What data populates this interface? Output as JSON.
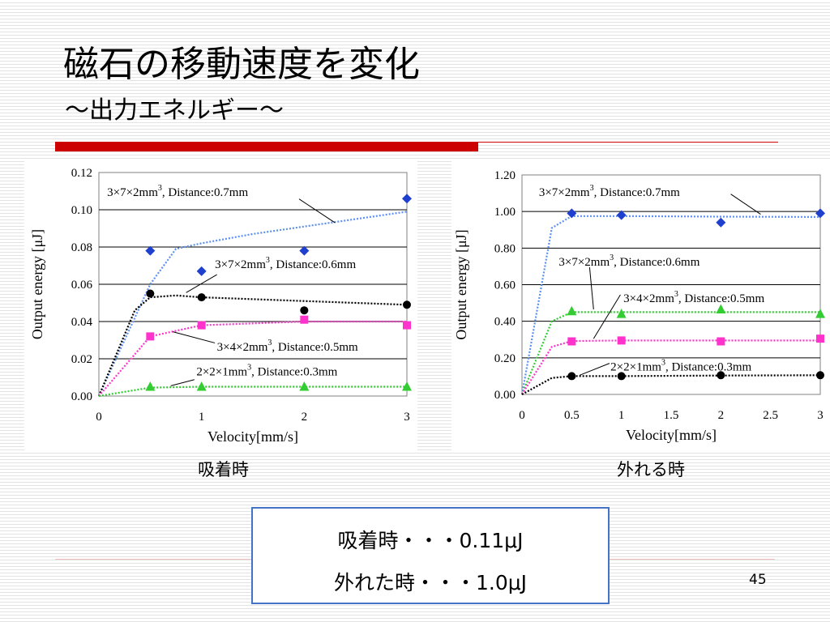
{
  "slide": {
    "title": "磁石の移動速度を変化",
    "subtitle": "～出力エネルギー～",
    "caption_left": "吸着時",
    "caption_right": "外れる時",
    "summary_line1": "吸着時・・・0.11μJ",
    "summary_line2": "外れた時・・・1.0μJ",
    "page_number": "45"
  },
  "colors": {
    "accent_red": "#cc0000",
    "box_border": "#4472c4",
    "series_blue": "#1f3fcf",
    "series_black": "#000000",
    "series_magenta": "#ff33cc",
    "series_green": "#33cc33",
    "trend_blue": "#5b8ff0"
  },
  "chart_data": [
    {
      "type": "scatter",
      "xlabel": "Velocity[mm/s]",
      "ylabel": "Output energy [μJ]",
      "xlim": [
        0,
        3
      ],
      "ylim": [
        0,
        0.12
      ],
      "xticks": [
        "0",
        "1",
        "2",
        "3"
      ],
      "xtick_values": [
        0,
        1,
        2,
        3
      ],
      "yticks": [
        "0.00",
        "0.02",
        "0.04",
        "0.06",
        "0.08",
        "0.10",
        "0.12"
      ],
      "ytick_values": [
        0,
        0.02,
        0.04,
        0.06,
        0.08,
        0.1,
        0.12
      ],
      "grid": "horizontal",
      "series": [
        {
          "name": "3×7×2mm3, Distance:0.7mm",
          "marker": "diamond",
          "color": "#1f3fcf",
          "trend_color": "#5b8ff0",
          "x": [
            0.5,
            1,
            2,
            3
          ],
          "y": [
            0.078,
            0.067,
            0.078,
            0.106
          ],
          "trend_x": [
            0,
            0.5,
            0.75,
            1,
            1.5,
            2,
            2.5,
            3
          ],
          "trend_y": [
            0,
            0.06,
            0.079,
            0.082,
            0.087,
            0.091,
            0.095,
            0.099
          ]
        },
        {
          "name": "3×7×2mm3, Distance:0.6mm",
          "marker": "circle",
          "color": "#000000",
          "trend_color": "#000000",
          "x": [
            0.5,
            1,
            2,
            3
          ],
          "y": [
            0.055,
            0.053,
            0.046,
            0.049
          ],
          "trend_x": [
            0,
            0.35,
            0.5,
            0.75,
            1,
            2,
            3
          ],
          "trend_y": [
            0,
            0.046,
            0.053,
            0.054,
            0.053,
            0.051,
            0.049
          ]
        },
        {
          "name": "3×4×2mm3, Distance:0.5mm",
          "marker": "square",
          "color": "#ff33cc",
          "trend_color": "#ff33cc",
          "x": [
            0.5,
            1,
            2,
            3
          ],
          "y": [
            0.032,
            0.038,
            0.041,
            0.038
          ],
          "trend_x": [
            0,
            0.5,
            1,
            2,
            3
          ],
          "trend_y": [
            0,
            0.032,
            0.038,
            0.04,
            0.04
          ]
        },
        {
          "name": "2×2×1mm3, Distance:0.3mm",
          "marker": "triangle",
          "color": "#33cc33",
          "trend_color": "#33cc33",
          "x": [
            0.5,
            1,
            2,
            3
          ],
          "y": [
            0.005,
            0.005,
            0.005,
            0.005
          ],
          "trend_x": [
            0,
            0.5,
            1,
            2,
            3
          ],
          "trend_y": [
            0,
            0.0045,
            0.005,
            0.005,
            0.005
          ]
        }
      ],
      "annotations": [
        {
          "text": "3×7×2mm",
          "sup": "3",
          "tail": ", Distance:0.7mm",
          "lx": 0.08,
          "ly": 0.1075,
          "line": [
            [
              1.95,
              0.1058
            ],
            [
              2.3,
              0.093
            ]
          ]
        },
        {
          "text": "3×7×2mm",
          "sup": "3",
          "tail": ", Distance:0.6mm",
          "lx": 1.13,
          "ly": 0.0688,
          "line": [
            [
              1.15,
              0.0652
            ],
            [
              0.85,
              0.0555
            ]
          ]
        },
        {
          "text": "3×4×2mm",
          "sup": "3",
          "tail": ", Distance:0.5mm",
          "lx": 1.15,
          "ly": 0.0243,
          "line": [
            [
              1.13,
              0.0285
            ],
            [
              0.72,
              0.0345
            ]
          ]
        },
        {
          "text": "2×2×1mm",
          "sup": "3",
          "tail": ", Distance:0.3mm",
          "lx": 0.95,
          "ly": 0.0111,
          "line": [
            [
              0.93,
              0.0088
            ],
            [
              0.7,
              0.0055
            ]
          ]
        }
      ]
    },
    {
      "type": "scatter",
      "xlabel": "Velocity[mm/s]",
      "ylabel": "Output energy [μJ]",
      "xlim": [
        0,
        3
      ],
      "ylim": [
        0,
        1.2
      ],
      "xticks": [
        "0",
        "0.5",
        "1",
        "1.5",
        "2",
        "2.5",
        "3"
      ],
      "xtick_values": [
        0,
        0.5,
        1,
        1.5,
        2,
        2.5,
        3
      ],
      "yticks": [
        "0.00",
        "0.20",
        "0.40",
        "0.60",
        "0.80",
        "1.00",
        "1.20"
      ],
      "ytick_values": [
        0,
        0.2,
        0.4,
        0.6,
        0.8,
        1.0,
        1.2
      ],
      "grid": "horizontal",
      "series": [
        {
          "name": "3×7×2mm3, Distance:0.7mm",
          "marker": "diamond",
          "color": "#1f3fcf",
          "trend_color": "#5b8ff0",
          "x": [
            0.5,
            1,
            2,
            3
          ],
          "y": [
            0.99,
            0.98,
            0.94,
            0.99
          ],
          "trend_x": [
            0,
            0.3,
            0.5,
            1,
            2,
            3
          ],
          "trend_y": [
            0,
            0.91,
            0.975,
            0.975,
            0.972,
            0.97
          ]
        },
        {
          "name": "3×7×2mm3, Distance:0.6mm",
          "marker": "triangle",
          "color": "#33cc33",
          "trend_color": "#33cc33",
          "x": [
            0.5,
            1,
            2,
            3
          ],
          "y": [
            0.455,
            0.44,
            0.465,
            0.44
          ],
          "trend_x": [
            0,
            0.3,
            0.5,
            1,
            2,
            3
          ],
          "trend_y": [
            0,
            0.4,
            0.45,
            0.45,
            0.45,
            0.45
          ]
        },
        {
          "name": "3×4×2mm3, Distance:0.5mm",
          "marker": "square",
          "color": "#ff33cc",
          "trend_color": "#ff33cc",
          "x": [
            0.5,
            1,
            2,
            3
          ],
          "y": [
            0.29,
            0.295,
            0.29,
            0.305
          ],
          "trend_x": [
            0,
            0.3,
            0.5,
            1,
            2,
            3
          ],
          "trend_y": [
            0,
            0.26,
            0.292,
            0.295,
            0.295,
            0.295
          ]
        },
        {
          "name": "2×2×1mm3, Distance:0.3mm",
          "marker": "circle",
          "color": "#000000",
          "trend_color": "#000000",
          "x": [
            0.5,
            1,
            2,
            3
          ],
          "y": [
            0.1,
            0.1,
            0.105,
            0.105
          ],
          "trend_x": [
            0,
            0.3,
            0.5,
            1,
            2,
            3
          ],
          "trend_y": [
            0,
            0.09,
            0.1,
            0.1,
            0.103,
            0.105
          ]
        }
      ],
      "annotations": [
        {
          "text": "3×7×2mm",
          "sup": "3",
          "tail": ", Distance:0.7mm",
          "lx": 0.17,
          "ly": 1.085,
          "line": [
            [
              2.1,
              1.095
            ],
            [
              2.4,
              0.985
            ]
          ]
        },
        {
          "text": "3×7×2mm",
          "sup": "3",
          "tail": ", Distance:0.6mm",
          "lx": 0.37,
          "ly": 0.705,
          "line": [
            [
              0.68,
              0.695
            ],
            [
              0.72,
              0.465
            ]
          ]
        },
        {
          "text": "3×4×2mm",
          "sup": "3",
          "tail": ", Distance:0.5mm",
          "lx": 1.02,
          "ly": 0.505,
          "line": [
            [
              0.99,
              0.545
            ],
            [
              0.72,
              0.305
            ]
          ]
        },
        {
          "text": "2×2×1mm",
          "sup": "3",
          "tail": ", Distance:0.3mm",
          "lx": 0.89,
          "ly": 0.13,
          "line": [
            [
              0.88,
              0.17
            ],
            [
              0.58,
              0.105
            ]
          ]
        }
      ]
    }
  ]
}
